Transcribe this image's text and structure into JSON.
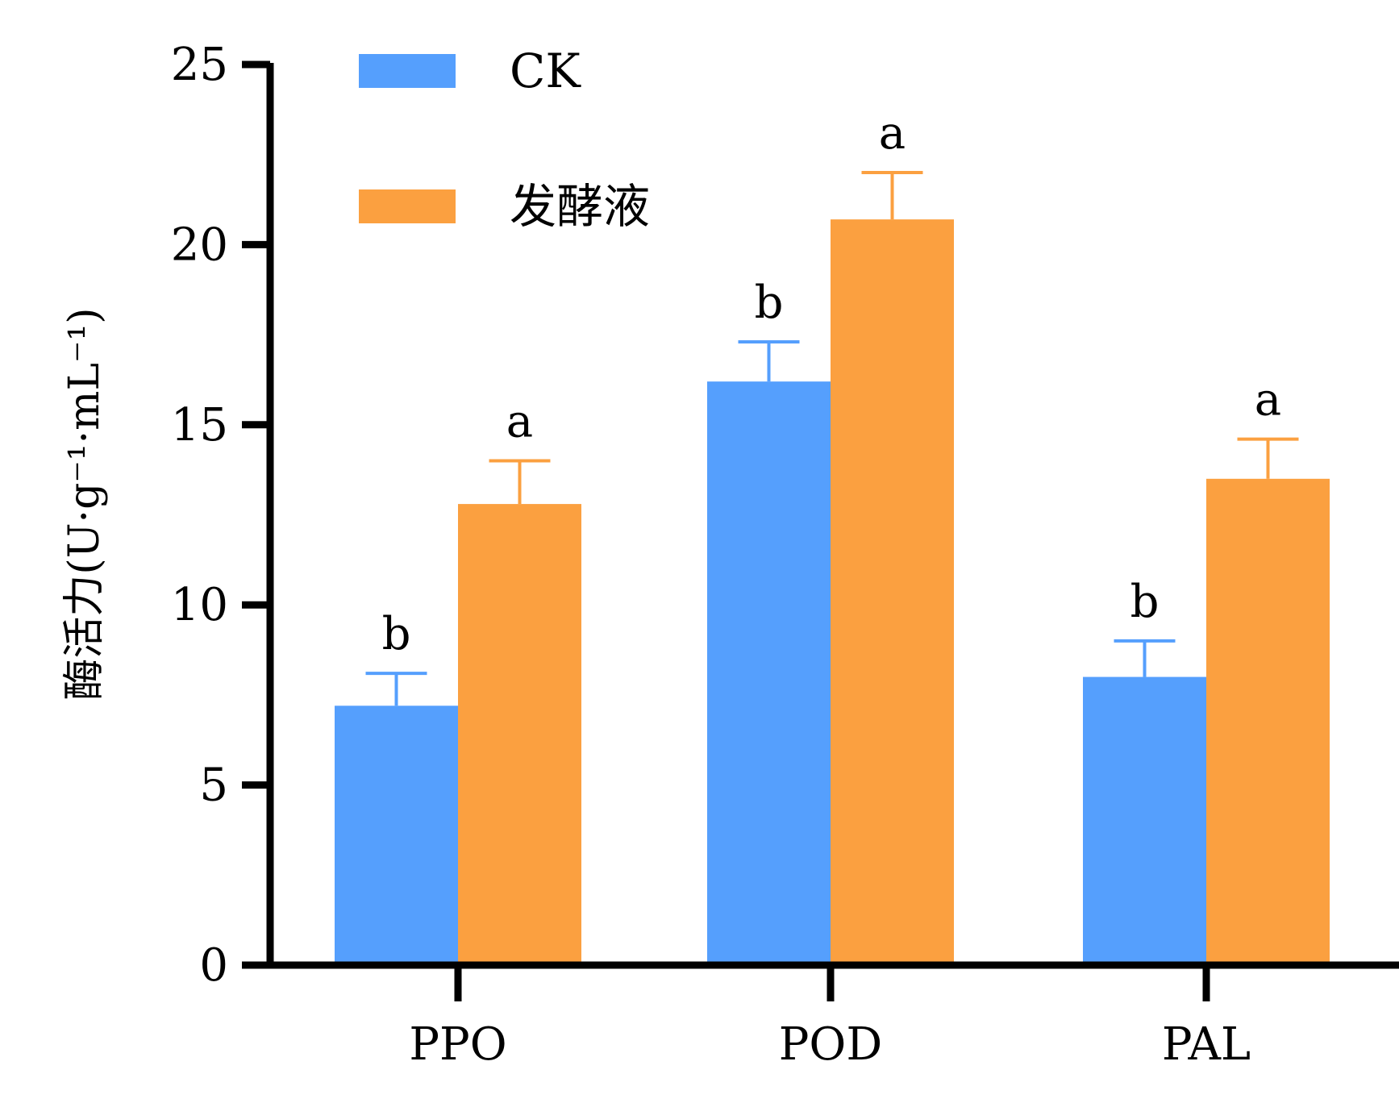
{
  "chart_data": {
    "type": "bar",
    "title": "",
    "xlabel": "",
    "ylabel": "酶活力(U·g⁻¹·mL⁻¹)",
    "ylim": [
      0,
      25
    ],
    "yticks": [
      0,
      5,
      10,
      15,
      20,
      25
    ],
    "categories": [
      "PPO",
      "POD",
      "PAL"
    ],
    "legend_position": "top-left",
    "grid": false,
    "series": [
      {
        "name": "CK",
        "color": "#559ffd",
        "values": [
          7.2,
          16.2,
          8.0
        ],
        "errors": [
          0.9,
          1.1,
          1.0
        ],
        "significance": [
          "b",
          "b",
          "b"
        ]
      },
      {
        "name": "发酵液",
        "color": "#fba040",
        "values": [
          12.8,
          20.7,
          13.5
        ],
        "errors": [
          1.2,
          1.3,
          1.1
        ],
        "significance": [
          "a",
          "a",
          "a"
        ]
      }
    ]
  }
}
